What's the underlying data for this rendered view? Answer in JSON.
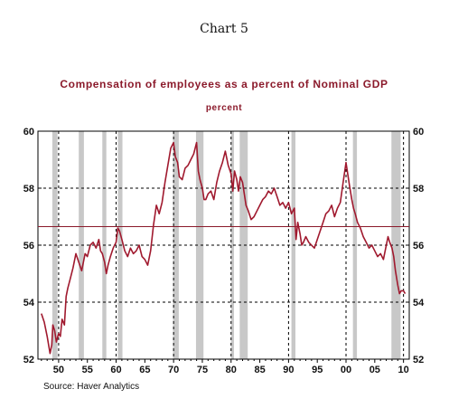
{
  "heading": "Chart 5",
  "source": "Source: Haver Analytics",
  "colors": {
    "line": "#a0192e",
    "recession": "#c8c8c8",
    "grid": "#000000",
    "ref_line": "#8b1a2b"
  },
  "chart_data": {
    "type": "line",
    "title": "Compensation of employees as a percent of Nominal GDP",
    "subtitle": "percent",
    "ylim": [
      52,
      60
    ],
    "xlim": [
      1946.4,
      2011.0
    ],
    "yticks_left": [
      "52",
      "54",
      "56",
      "58",
      "60"
    ],
    "yticks_right": [
      "52",
      "54",
      "56",
      "58",
      "60"
    ],
    "xticks": [
      "50",
      "55",
      "60",
      "65",
      "70",
      "75",
      "80",
      "85",
      "90",
      "95",
      "00",
      "05",
      "10"
    ],
    "xtick_years": [
      1950,
      1955,
      1960,
      1965,
      1970,
      1975,
      1980,
      1985,
      1990,
      1995,
      2000,
      2005,
      2010
    ],
    "grid": true,
    "dashed_vertical_years": [
      1950,
      1960,
      1970,
      1980,
      1990,
      2000,
      2010
    ],
    "reference_line": 56.65,
    "recessions": [
      [
        1948.9,
        1949.8
      ],
      [
        1953.5,
        1954.4
      ],
      [
        1957.6,
        1958.3
      ],
      [
        1960.3,
        1961.1
      ],
      [
        1969.9,
        1970.9
      ],
      [
        1973.9,
        1975.2
      ],
      [
        1980.0,
        1980.5
      ],
      [
        1981.5,
        1982.9
      ],
      [
        1990.5,
        1991.2
      ],
      [
        2001.2,
        2001.9
      ],
      [
        2007.9,
        2009.5
      ]
    ],
    "series": [
      {
        "x": [
          1947.0,
          1947.5,
          1948.0,
          1948.5,
          1948.8,
          1949.0,
          1949.3,
          1949.6,
          1950.0,
          1950.3,
          1950.6,
          1951.0,
          1951.3,
          1951.6,
          1952.0,
          1952.5,
          1953.0,
          1953.5,
          1954.0,
          1954.3,
          1954.6,
          1955.0,
          1955.5,
          1956.0,
          1956.5,
          1957.0,
          1957.3,
          1957.6,
          1958.0,
          1958.3,
          1958.6,
          1959.0,
          1959.5,
          1960.0,
          1960.3,
          1960.6,
          1961.0,
          1961.5,
          1962.0,
          1962.5,
          1963.0,
          1963.5,
          1964.0,
          1964.5,
          1965.0,
          1965.5,
          1966.0,
          1966.5,
          1967.0,
          1967.5,
          1968.0,
          1968.5,
          1969.0,
          1969.5,
          1970.0,
          1970.3,
          1970.7,
          1971.0,
          1971.5,
          1972.0,
          1972.5,
          1973.0,
          1973.5,
          1974.0,
          1974.3,
          1974.6,
          1975.0,
          1975.3,
          1975.6,
          1976.0,
          1976.5,
          1977.0,
          1977.5,
          1978.0,
          1978.5,
          1979.0,
          1979.5,
          1980.0,
          1980.3,
          1980.6,
          1981.0,
          1981.3,
          1981.6,
          1982.0,
          1982.3,
          1982.6,
          1983.0,
          1983.5,
          1984.0,
          1984.5,
          1985.0,
          1985.5,
          1986.0,
          1986.5,
          1987.0,
          1987.5,
          1988.0,
          1988.5,
          1989.0,
          1989.5,
          1990.0,
          1990.5,
          1991.0,
          1991.3,
          1991.6,
          1992.0,
          1992.3,
          1992.6,
          1993.0,
          1993.5,
          1994.0,
          1994.5,
          1995.0,
          1995.5,
          1996.0,
          1996.5,
          1997.0,
          1997.5,
          1998.0,
          1998.5,
          1999.0,
          1999.5,
          2000.0,
          2000.3,
          2000.6,
          2001.0,
          2001.3,
          2001.6,
          2002.0,
          2002.5,
          2003.0,
          2003.5,
          2004.0,
          2004.5,
          2005.0,
          2005.5,
          2006.0,
          2006.5,
          2007.0,
          2007.3,
          2007.6,
          2008.0,
          2008.3,
          2008.6,
          2009.0,
          2009.3,
          2009.6,
          2010.0,
          2010.3
        ],
        "y": [
          53.6,
          53.3,
          52.8,
          52.2,
          52.5,
          53.2,
          53.0,
          52.6,
          52.9,
          52.8,
          53.4,
          53.2,
          54.2,
          54.5,
          54.8,
          55.2,
          55.7,
          55.4,
          55.1,
          55.4,
          55.7,
          55.6,
          56.0,
          56.1,
          55.9,
          56.2,
          55.8,
          55.7,
          55.4,
          55.0,
          55.3,
          55.6,
          55.9,
          56.1,
          56.6,
          56.5,
          56.2,
          55.8,
          55.6,
          55.9,
          55.7,
          55.8,
          56.0,
          55.6,
          55.5,
          55.3,
          55.8,
          56.7,
          57.4,
          57.1,
          57.5,
          58.2,
          58.8,
          59.4,
          59.6,
          59.1,
          58.9,
          58.4,
          58.3,
          58.7,
          58.8,
          59.0,
          59.2,
          59.6,
          58.6,
          58.3,
          58.0,
          57.6,
          57.6,
          57.8,
          57.9,
          57.6,
          58.2,
          58.6,
          58.9,
          59.3,
          58.8,
          58.5,
          57.9,
          58.6,
          58.3,
          57.9,
          58.4,
          58.2,
          57.8,
          57.4,
          57.2,
          56.9,
          57.0,
          57.2,
          57.4,
          57.6,
          57.7,
          57.9,
          57.8,
          58.0,
          57.7,
          57.4,
          57.5,
          57.3,
          57.5,
          57.1,
          57.3,
          56.2,
          56.8,
          56.4,
          56.0,
          56.1,
          56.3,
          56.1,
          56.0,
          55.9,
          56.2,
          56.5,
          56.8,
          57.1,
          57.2,
          57.4,
          57.0,
          57.3,
          57.5,
          58.2,
          58.9,
          58.5,
          58.1,
          57.6,
          57.3,
          57.1,
          56.8,
          56.6,
          56.3,
          56.1,
          55.9,
          56.0,
          55.8,
          55.6,
          55.7,
          55.5,
          56.0,
          56.3,
          56.1,
          55.9,
          55.6,
          55.1,
          54.6,
          54.3,
          54.4,
          54.4,
          54.3
        ]
      }
    ]
  }
}
